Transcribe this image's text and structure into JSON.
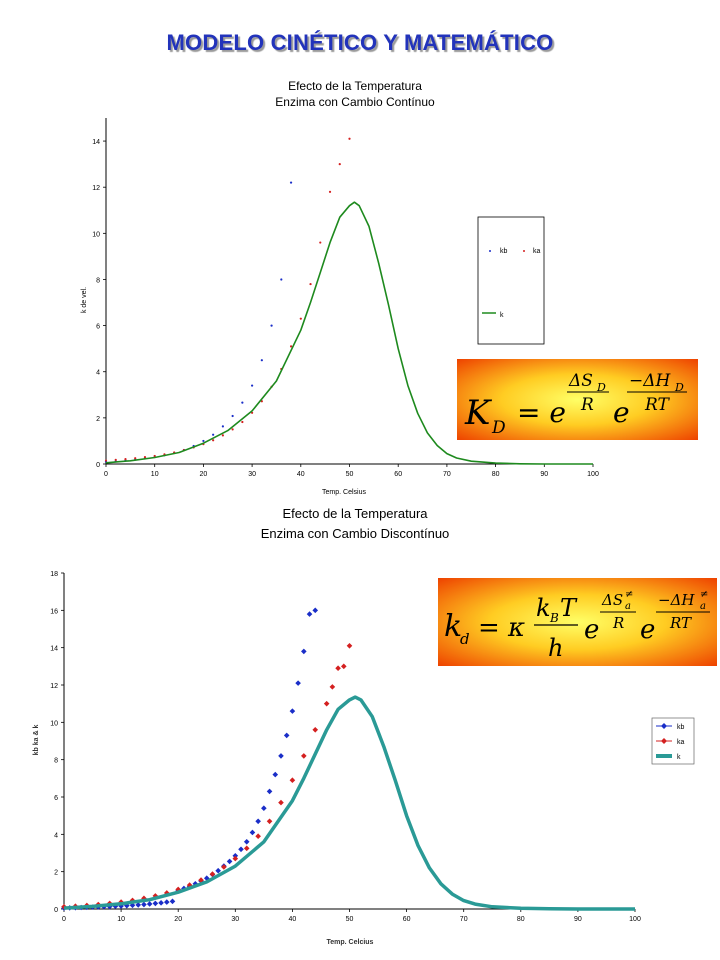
{
  "page": {
    "title": "MODELO CINÉTICO Y MATEMÁTICO"
  },
  "formulas": {
    "kd_continuous": {
      "lhs": "K",
      "lhs_sub": "D",
      "eq": "= e",
      "exp1_num": "ΔS",
      "exp1_num_sub": "D",
      "exp1_den": "R",
      "base2": "e",
      "exp2_num": "−ΔH",
      "exp2_num_sub": "D",
      "exp2_den": "RT"
    },
    "kd_discontinuous": {
      "lhs": "k",
      "lhs_sub": "d",
      "eq": "= κ",
      "frac_num": "k",
      "frac_num_sub": "B",
      "frac_num_tail": "T",
      "frac_den": "h",
      "base1": "e",
      "exp1_num": "ΔS",
      "exp1_num_sup": "≠",
      "exp1_num_sub": "a",
      "exp1_den": "R",
      "base2": "e",
      "exp2_num": "−ΔH",
      "exp2_num_sup": "≠",
      "exp2_num_sub": "a",
      "exp2_den": "RT"
    }
  },
  "chart_data": [
    {
      "type": "line",
      "title": "Efecto de la Temperatura",
      "subtitle": "Enzima con Cambio Contínuo",
      "xlabel": "Temp. Celsius",
      "ylabel": "k de vel.",
      "xlim": [
        0,
        100
      ],
      "ylim": [
        0,
        15
      ],
      "xticks": [
        0,
        10,
        20,
        30,
        40,
        50,
        60,
        70,
        80,
        90,
        100
      ],
      "yticks": [
        0,
        2,
        4,
        6,
        8,
        10,
        12,
        14
      ],
      "grid": false,
      "legend_position": "right",
      "series": [
        {
          "name": "kb",
          "style": "points",
          "color": "#1a2ec8",
          "x": [
            0,
            2,
            4,
            6,
            8,
            10,
            12,
            14,
            16,
            18,
            20,
            22,
            24,
            26,
            28,
            30,
            32,
            34,
            36,
            38
          ],
          "y": [
            0.1,
            0.12,
            0.15,
            0.19,
            0.24,
            0.3,
            0.38,
            0.48,
            0.61,
            0.78,
            1.0,
            1.27,
            1.63,
            2.08,
            2.66,
            3.4,
            4.5,
            6.0,
            8.0,
            12.2
          ]
        },
        {
          "name": "ka",
          "style": "points",
          "color": "#d42020",
          "x": [
            0,
            2,
            4,
            6,
            8,
            10,
            12,
            14,
            16,
            18,
            20,
            22,
            24,
            26,
            28,
            30,
            32,
            34,
            36,
            38,
            40,
            42,
            44,
            46,
            48,
            50
          ],
          "y": [
            0.15,
            0.18,
            0.21,
            0.25,
            0.3,
            0.35,
            0.42,
            0.5,
            0.6,
            0.72,
            0.86,
            1.03,
            1.24,
            1.5,
            1.82,
            2.22,
            2.72,
            3.35,
            4.12,
            5.1,
            6.3,
            7.8,
            9.6,
            11.8,
            13.0,
            14.1
          ]
        },
        {
          "name": "k",
          "style": "line",
          "color": "#1e8a1e",
          "x": [
            0,
            5,
            10,
            15,
            20,
            25,
            30,
            35,
            40,
            42,
            44,
            46,
            48,
            50,
            51,
            52,
            54,
            56,
            58,
            60,
            62,
            64,
            66,
            68,
            70,
            72,
            75,
            80,
            85,
            90,
            100
          ],
          "y": [
            0.05,
            0.14,
            0.28,
            0.5,
            0.9,
            1.45,
            2.3,
            3.6,
            5.8,
            7.0,
            8.3,
            9.6,
            10.7,
            11.2,
            11.35,
            11.2,
            10.3,
            8.7,
            6.9,
            5.0,
            3.4,
            2.2,
            1.35,
            0.8,
            0.45,
            0.26,
            0.12,
            0.04,
            0.01,
            0.0,
            0.0
          ]
        }
      ],
      "legend_entries": [
        "kb",
        "ka",
        "k"
      ]
    },
    {
      "type": "line",
      "title": "Efecto de la Temperatura",
      "subtitle": "Enzima con Cambio Discontínuo",
      "xlabel": "Temp. Celcius",
      "ylabel": "kb ka & k",
      "xlim": [
        0,
        100
      ],
      "ylim": [
        0,
        18
      ],
      "xticks": [
        0,
        10,
        20,
        30,
        40,
        50,
        60,
        70,
        80,
        90,
        100
      ],
      "yticks": [
        0,
        2,
        4,
        6,
        8,
        10,
        12,
        14,
        16,
        18
      ],
      "grid": false,
      "legend_position": "right",
      "series": [
        {
          "name": "kb",
          "style": "points",
          "color": "#1a2ec8",
          "x": [
            0,
            1,
            2,
            3,
            4,
            5,
            6,
            7,
            8,
            9,
            10,
            11,
            12,
            13,
            14,
            15,
            16,
            17,
            18,
            19,
            20,
            21,
            22,
            23,
            24,
            25,
            26,
            27,
            28,
            29,
            30,
            31,
            32,
            33,
            34,
            35,
            36,
            37,
            38,
            39,
            40,
            41,
            42,
            43,
            44
          ],
          "y": [
            0.05,
            0.06,
            0.07,
            0.08,
            0.09,
            0.1,
            0.11,
            0.12,
            0.13,
            0.15,
            0.16,
            0.18,
            0.2,
            0.22,
            0.24,
            0.27,
            0.3,
            0.33,
            0.37,
            0.41,
            1.0,
            1.1,
            1.2,
            1.35,
            1.5,
            1.65,
            1.85,
            2.05,
            2.3,
            2.55,
            2.85,
            3.2,
            3.6,
            4.1,
            4.7,
            5.4,
            6.3,
            7.2,
            8.2,
            9.3,
            10.6,
            12.1,
            13.8,
            15.8,
            16.0
          ]
        },
        {
          "name": "ka",
          "style": "points",
          "color": "#d42020",
          "x": [
            0,
            2,
            4,
            6,
            8,
            10,
            12,
            14,
            16,
            18,
            20,
            22,
            24,
            26,
            28,
            30,
            32,
            34,
            36,
            38,
            40,
            42,
            44,
            46,
            47,
            48,
            49,
            50
          ],
          "y": [
            0.12,
            0.15,
            0.19,
            0.24,
            0.3,
            0.37,
            0.46,
            0.57,
            0.7,
            0.86,
            1.05,
            1.28,
            1.55,
            1.87,
            2.25,
            2.7,
            3.25,
            3.9,
            4.7,
            5.7,
            6.9,
            8.2,
            9.6,
            11.0,
            11.9,
            12.9,
            13.0,
            14.1
          ]
        },
        {
          "name": "k",
          "style": "line",
          "color": "#2a9a96",
          "x": [
            0,
            5,
            10,
            15,
            20,
            25,
            30,
            35,
            40,
            42,
            44,
            46,
            48,
            50,
            51,
            52,
            54,
            56,
            58,
            60,
            62,
            64,
            66,
            68,
            70,
            72,
            75,
            80,
            85,
            90,
            100
          ],
          "y": [
            0.05,
            0.14,
            0.28,
            0.5,
            0.9,
            1.45,
            2.3,
            3.6,
            5.8,
            7.0,
            8.3,
            9.6,
            10.7,
            11.2,
            11.35,
            11.2,
            10.3,
            8.7,
            6.9,
            5.0,
            3.4,
            2.2,
            1.35,
            0.8,
            0.45,
            0.26,
            0.12,
            0.04,
            0.01,
            0.0,
            0.0
          ]
        }
      ],
      "legend_entries": [
        "kb",
        "ka",
        "k"
      ]
    }
  ]
}
